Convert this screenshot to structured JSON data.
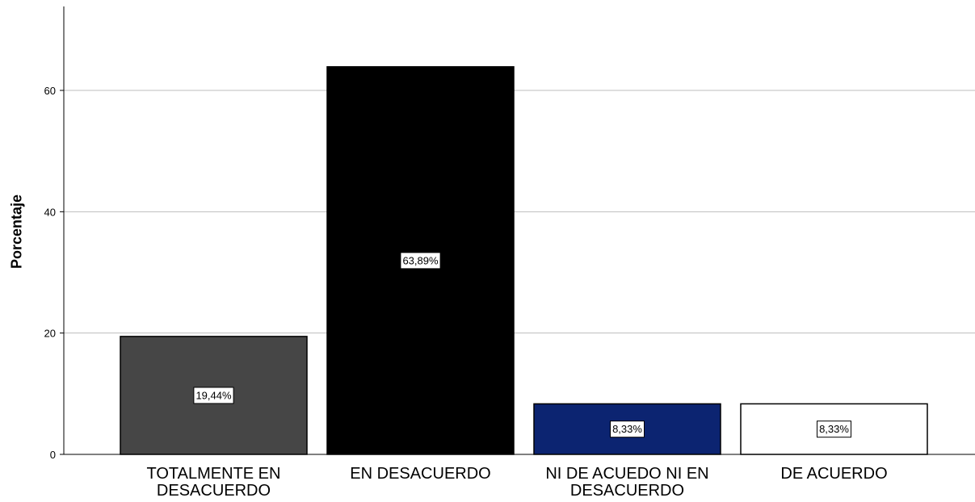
{
  "chart_data": {
    "type": "bar",
    "title": "",
    "xlabel": "",
    "ylabel": "Porcentaje",
    "ylim": [
      0,
      73.5
    ],
    "yticks": [
      0,
      20,
      40,
      60
    ],
    "grid": true,
    "categories": [
      [
        "TOTALMENTE EN",
        "DESACUERDO"
      ],
      [
        "EN DESACUERDO"
      ],
      [
        "NI DE ACUEDO NI EN",
        "DESACUERDO"
      ],
      [
        "DE ACUERDO"
      ]
    ],
    "values": [
      19.44,
      63.89,
      8.33,
      8.33
    ],
    "data_labels": [
      "19,44%",
      "63,89%",
      "8,33%",
      "8,33%"
    ],
    "colors": [
      "#464646",
      "#000000",
      "#0c2471",
      "#ffffff"
    ]
  }
}
